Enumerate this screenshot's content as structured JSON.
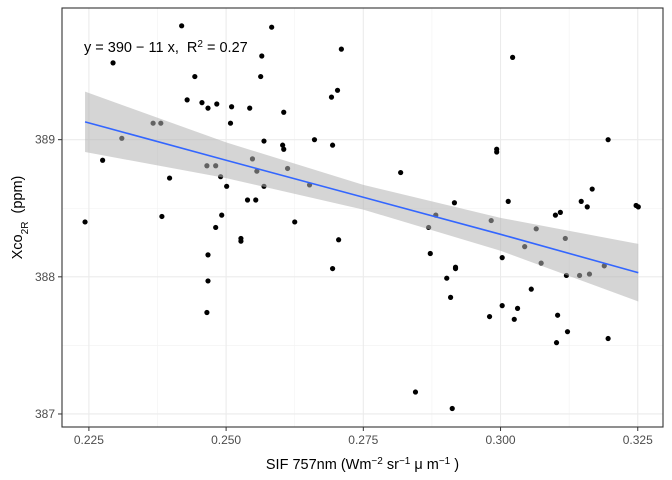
{
  "chart_data": {
    "type": "scatter",
    "x_label": [
      {
        "text": "SIF 757nm (Wm"
      },
      {
        "text": "−2",
        "script": "sup"
      },
      {
        "text": " sr"
      },
      {
        "text": "−1",
        "script": "sup"
      },
      {
        "text": " μ m"
      },
      {
        "text": "−1",
        "script": "sup"
      },
      {
        "text": " )"
      }
    ],
    "y_label": [
      {
        "text": "Xco"
      },
      {
        "text": "2R",
        "script": "sub"
      },
      {
        "text": "  (ppm)"
      }
    ],
    "annotation": [
      {
        "text": "y = 390 − 11 x,  R"
      },
      {
        "text": "2",
        "script": "sup"
      },
      {
        "text": " = 0.27"
      }
    ],
    "xlim": [
      0.2201,
      0.3296
    ],
    "ylim": [
      386.905,
      389.96
    ],
    "xticks": [
      0.225,
      {
        "value": 0.25,
        "label": "0.250"
      },
      0.275,
      {
        "value": 0.3,
        "label": "0.300"
      },
      0.325
    ],
    "yticks": [
      387,
      388,
      389
    ],
    "grid": true,
    "minor_grid": true,
    "point_color": "#000000",
    "line_color": "#3366ff",
    "band_color": "#b3b3b3",
    "x": [
      0.2243,
      0.2275,
      0.2294,
      0.231,
      0.2367,
      0.2381,
      0.2383,
      0.2397,
      0.2419,
      0.2429,
      0.2443,
      0.2456,
      0.2465,
      0.2465,
      0.2467,
      0.2467,
      0.2467,
      0.2481,
      0.2481,
      0.2483,
      0.249,
      0.2492,
      0.2501,
      0.2508,
      0.251,
      0.2539,
      0.2548,
      0.2527,
      0.2527,
      0.2543,
      0.2554,
      0.2556,
      0.2565,
      0.2563,
      0.2569,
      0.2569,
      0.2583,
      0.2605,
      0.2603,
      0.2605,
      0.2612,
      0.2625,
      0.2652,
      0.2661,
      0.2703,
      0.2692,
      0.2694,
      0.2694,
      0.2705,
      0.271,
      0.2818,
      0.2845,
      0.2869,
      0.2872,
      0.2882,
      0.2902,
      0.2909,
      0.2912,
      0.2916,
      0.2918,
      0.2918,
      0.298,
      0.2983,
      0.2993,
      0.2993,
      0.3003,
      0.3003,
      0.3014,
      0.3022,
      0.3025,
      0.3031,
      0.3044,
      0.3056,
      0.3065,
      0.3074,
      0.31,
      0.3102,
      0.3104,
      0.3109,
      0.3118,
      0.3122,
      0.3144,
      0.3147,
      0.3158,
      0.3162,
      0.3167,
      0.3189,
      0.3196,
      0.3196,
      0.3247,
      0.3251,
      0.312
    ],
    "y": [
      388.4,
      388.85,
      389.56,
      389.01,
      389.12,
      389.12,
      388.44,
      388.72,
      389.83,
      389.29,
      389.46,
      389.27,
      388.81,
      387.74,
      388.16,
      387.97,
      389.23,
      388.81,
      388.36,
      389.26,
      388.73,
      388.45,
      388.66,
      389.12,
      389.24,
      388.56,
      388.86,
      388.26,
      388.28,
      389.23,
      388.56,
      388.77,
      389.61,
      389.46,
      388.99,
      388.66,
      389.82,
      389.2,
      388.96,
      388.93,
      388.79,
      388.4,
      388.67,
      389.0,
      389.36,
      389.31,
      388.96,
      388.06,
      388.27,
      389.66,
      388.76,
      387.16,
      388.36,
      388.17,
      388.45,
      387.99,
      387.85,
      387.04,
      388.54,
      388.07,
      388.06,
      387.71,
      388.41,
      388.93,
      388.91,
      388.14,
      387.79,
      388.55,
      389.6,
      387.69,
      387.77,
      388.22,
      387.91,
      388.35,
      388.1,
      388.45,
      387.52,
      387.72,
      388.47,
      388.28,
      387.6,
      388.01,
      388.55,
      388.51,
      388.02,
      388.64,
      388.08,
      389.0,
      387.55,
      388.52,
      388.51,
      388.01
    ],
    "fit": {
      "x": [
        0.2243,
        0.25,
        0.275,
        0.3,
        0.3251
      ],
      "y": [
        389.13,
        388.85,
        388.58,
        388.31,
        388.03
      ],
      "lower": [
        388.91,
        388.72,
        388.49,
        388.19,
        387.82
      ],
      "upper": [
        389.35,
        388.98,
        388.67,
        388.43,
        388.24
      ]
    }
  }
}
